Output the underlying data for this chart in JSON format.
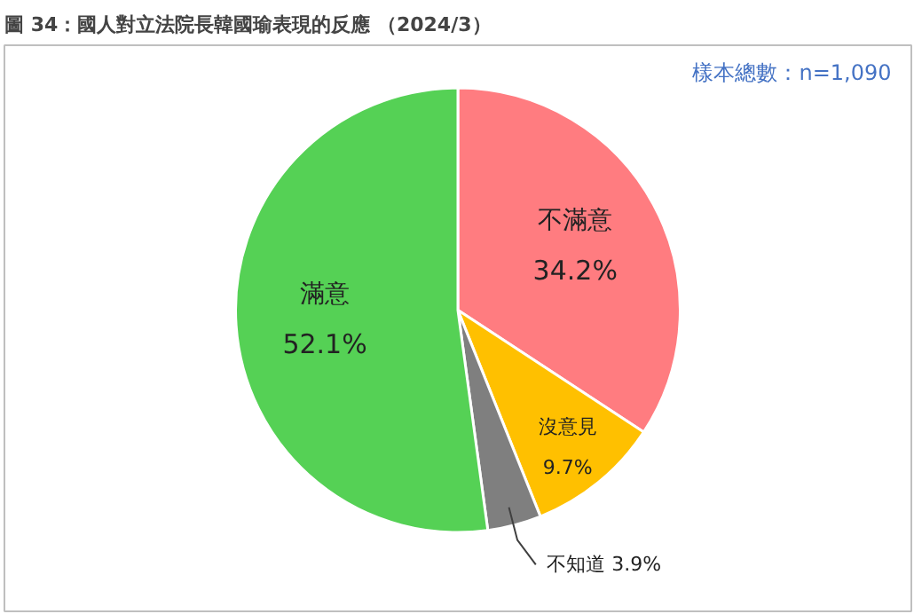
{
  "chart_data": {
    "type": "pie",
    "title": "圖 34：國人對立法院長韓國瑜表現的反應 （2024/3）",
    "categories": [
      "不滿意",
      "沒意見",
      "不知道",
      "滿意"
    ],
    "values": [
      34.2,
      9.7,
      3.9,
      52.1
    ],
    "value_labels": [
      "34.2%",
      "9.7%",
      "3.9%",
      "52.1%"
    ],
    "colors": [
      "#ff7c80",
      "#ffc000",
      "#7f7f7f",
      "#55d155"
    ],
    "annotations": [
      "樣本總數：n=1,090"
    ]
  }
}
